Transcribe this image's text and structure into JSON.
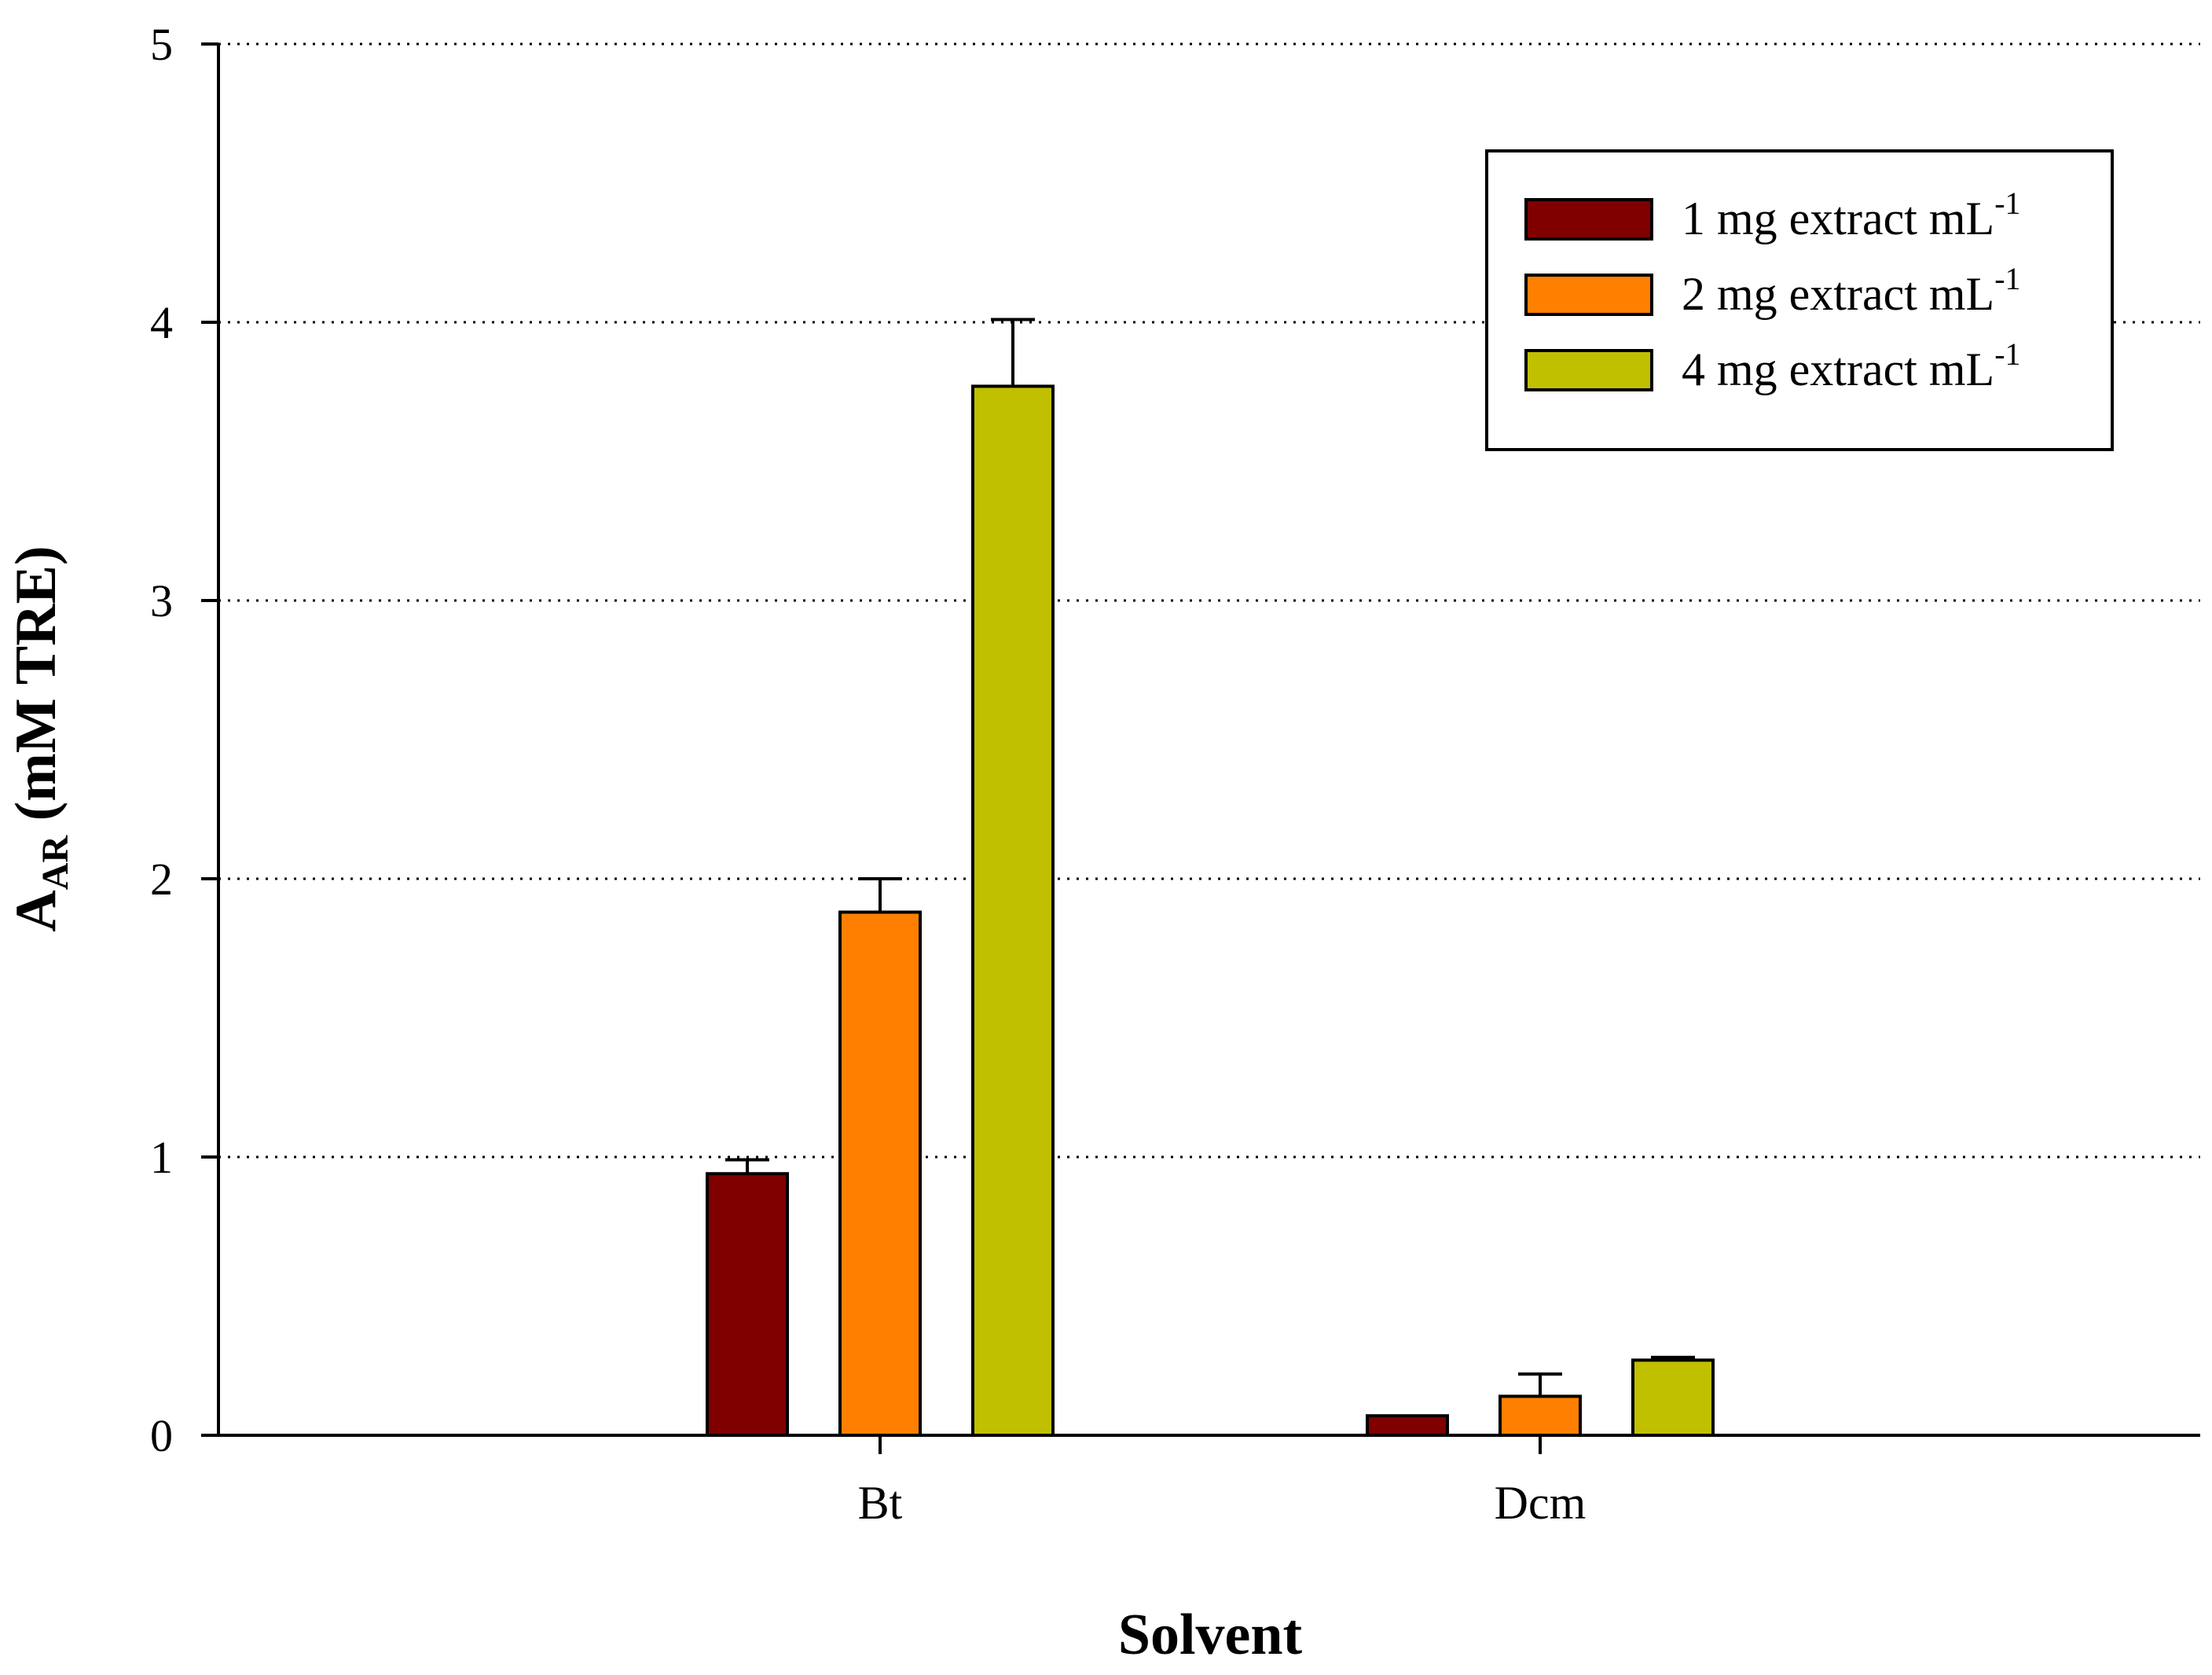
{
  "chart_data": {
    "type": "bar",
    "categories": [
      "Bt",
      "Dcm"
    ],
    "series": [
      {
        "name": "1 mg extract mL",
        "sup": "-1",
        "values": [
          0.94,
          0.07
        ],
        "errors": [
          0.05,
          0.0
        ],
        "color": "#800000"
      },
      {
        "name": "2 mg extract mL",
        "sup": "-1",
        "values": [
          1.88,
          0.14
        ],
        "errors": [
          0.12,
          0.08
        ],
        "color": "#ff8000"
      },
      {
        "name": "4 mg extract mL",
        "sup": "-1",
        "values": [
          3.77,
          0.27
        ],
        "errors": [
          0.24,
          0.01
        ],
        "color": "#c0c000"
      }
    ],
    "title": "",
    "xlabel": "Solvent",
    "ylabel_main": "A",
    "ylabel_sub": "AR",
    "ylabel_rest": " (mM TRE)",
    "ylim": [
      0,
      5
    ],
    "yticks": [
      "0",
      "1",
      "2",
      "3",
      "4",
      "5"
    ],
    "grid": "horizontal-dotted",
    "legend": "top-right"
  }
}
